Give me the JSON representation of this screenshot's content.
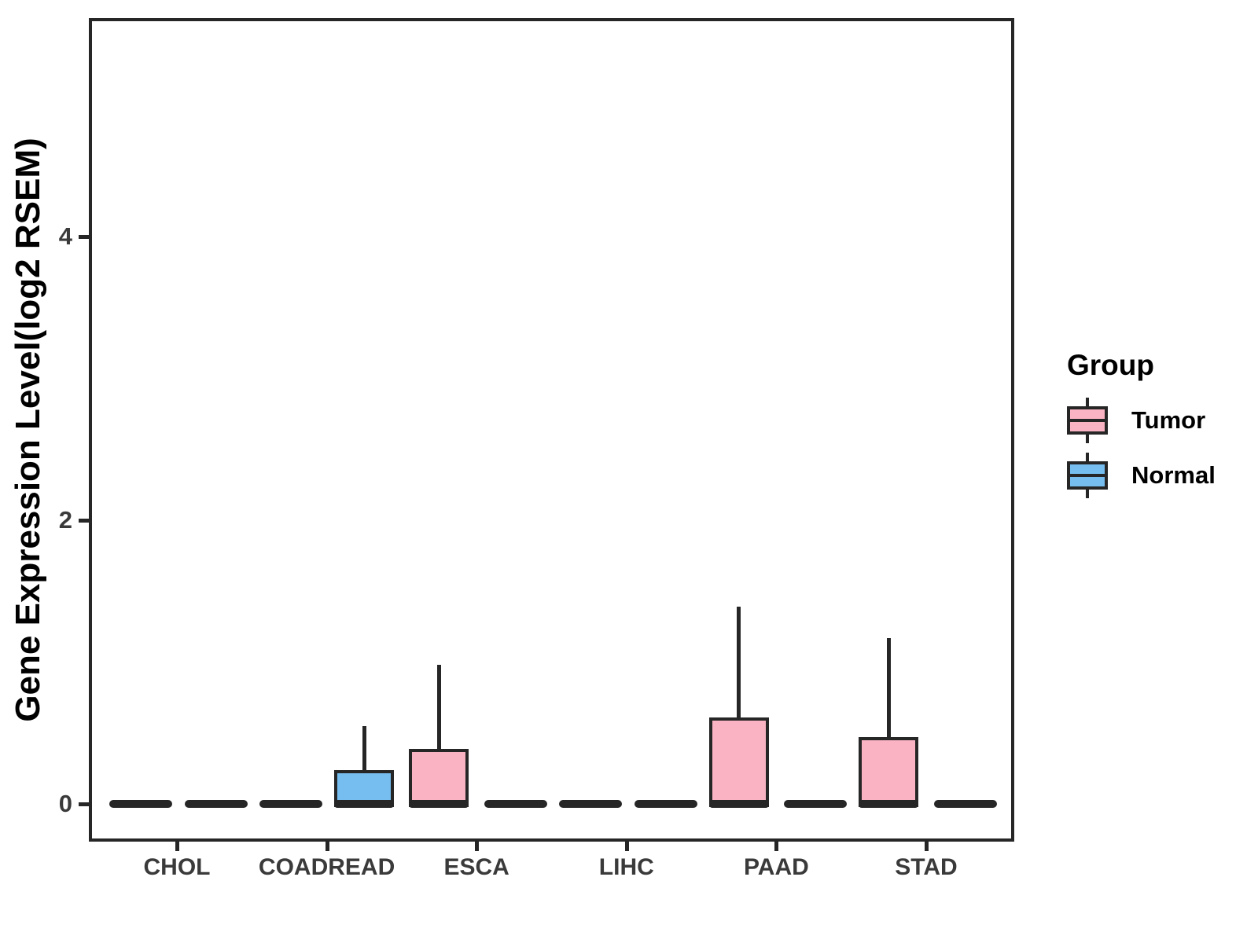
{
  "chart_data": {
    "type": "boxplot",
    "title": "",
    "xlabel": "",
    "ylabel": "Gene Expression Level(log2 RSEM)",
    "categories": [
      "CHOL",
      "COADREAD",
      "ESCA",
      "LIHC",
      "PAAD",
      "STAD"
    ],
    "yticks": [
      0,
      2,
      4
    ],
    "ytick_labels": [
      "0",
      "2",
      "4"
    ],
    "ylim": [
      -0.26,
      5.56
    ],
    "grid": "off",
    "legend_title": "Group",
    "legend_position": "right",
    "colors": {
      "panel_border": "#262626",
      "box_outline": "#262626",
      "tick_label": "#3A3A3A",
      "text": "#000000",
      "background": "#FFFFFF"
    },
    "series": [
      {
        "name": "Tumor",
        "color": "#FAB3C2",
        "boxes": [
          {
            "category": "CHOL",
            "low": 0,
            "q1": 0,
            "median": 0,
            "q3": 0,
            "high": 0
          },
          {
            "category": "COADREAD",
            "low": 0,
            "q1": 0,
            "median": 0,
            "q3": 0,
            "high": 0
          },
          {
            "category": "ESCA",
            "low": 0,
            "q1": 0,
            "median": 0,
            "q3": 0.39,
            "high": 0.98
          },
          {
            "category": "LIHC",
            "low": 0,
            "q1": 0,
            "median": 0,
            "q3": 0,
            "high": 0
          },
          {
            "category": "PAAD",
            "low": 0,
            "q1": 0,
            "median": 0,
            "q3": 0.61,
            "high": 1.39
          },
          {
            "category": "STAD",
            "low": 0,
            "q1": 0,
            "median": 0,
            "q3": 0.47,
            "high": 1.17
          }
        ]
      },
      {
        "name": "Normal",
        "color": "#77BEF0",
        "boxes": [
          {
            "category": "CHOL",
            "low": 0,
            "q1": 0,
            "median": 0,
            "q3": 0,
            "high": 0
          },
          {
            "category": "COADREAD",
            "low": 0,
            "q1": 0,
            "median": 0,
            "q3": 0.24,
            "high": 0.55
          },
          {
            "category": "ESCA",
            "low": 0,
            "q1": 0,
            "median": 0,
            "q3": 0,
            "high": 0
          },
          {
            "category": "LIHC",
            "low": 0,
            "q1": 0,
            "median": 0,
            "q3": 0,
            "high": 0
          },
          {
            "category": "PAAD",
            "low": 0,
            "q1": 0,
            "median": 0,
            "q3": 0,
            "high": 0
          },
          {
            "category": "STAD",
            "low": 0,
            "q1": 0,
            "median": 0,
            "q3": 0,
            "high": 0
          }
        ]
      }
    ]
  }
}
